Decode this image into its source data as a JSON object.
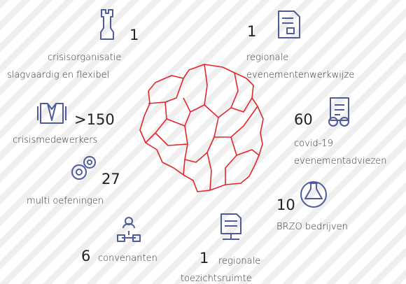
{
  "items": [
    {
      "number": "1",
      "lines": [
        "crisisorganisatie",
        "slagvaardig en flexibel"
      ]
    },
    {
      "number": "1",
      "lines": [
        "regionale",
        "evenementenwerkwijze"
      ]
    },
    {
      "number": ">150",
      "lines": [
        "crisismedewerkers"
      ]
    },
    {
      "number": "60",
      "lines": [
        "covid-19",
        "evenementadviezen"
      ]
    },
    {
      "number": "27",
      "lines": [
        "multi oefeningen"
      ]
    },
    {
      "number": "10",
      "lines": [
        "BRZO bedrijven"
      ]
    },
    {
      "number": "6",
      "lines": [
        "convenanten"
      ]
    },
    {
      "number": "1",
      "lines": [
        "regionale",
        "toezichtsruimte"
      ]
    }
  ]
}
